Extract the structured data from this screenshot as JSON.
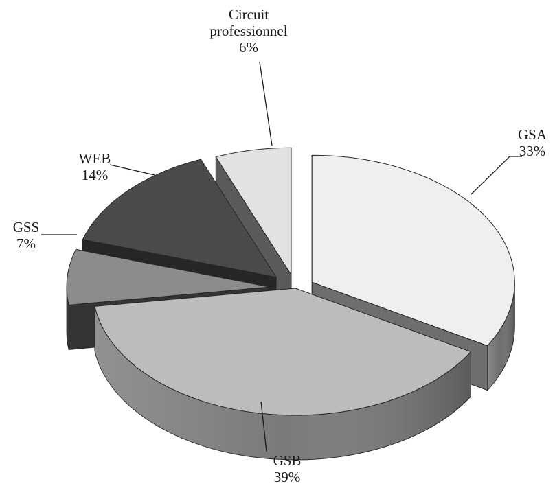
{
  "chart_data": {
    "type": "pie",
    "style": "3d-exploded",
    "unit": "%",
    "slices": [
      {
        "label": "GSA",
        "value": 33,
        "value_label": "33%",
        "top_color": "#f0f0f0",
        "side_color": "#6e6e6e"
      },
      {
        "label": "GSB",
        "value": 39,
        "value_label": "39%",
        "top_color": "#bdbdbd",
        "side_color": "#7a7a7a"
      },
      {
        "label": "GSS",
        "value": 7,
        "value_label": "7%",
        "top_color": "#8c8c8c",
        "side_color": "#333333"
      },
      {
        "label": "WEB",
        "value": 14,
        "value_label": "14%",
        "top_color": "#4a4a4a",
        "side_color": "#262626"
      },
      {
        "label": "Circuit professionnel",
        "label_lines": [
          "Circuit",
          "professionnel"
        ],
        "value": 6,
        "value_label": "6%",
        "top_color": "#e3e3e3",
        "side_color": "#5a5a5a"
      }
    ]
  }
}
